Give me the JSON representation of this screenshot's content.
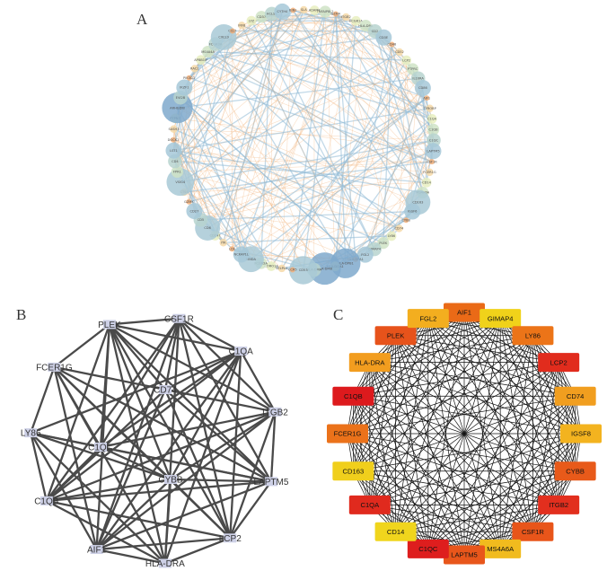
{
  "panels": {
    "a": {
      "letter": "A",
      "labels": [
        "GZMA",
        "ITGB2",
        "FCGR1A",
        "HLA-DRA",
        "CD2",
        "CD3E",
        "CD48",
        "CD52",
        "LCP2",
        "PTPRC",
        "IL10RA",
        "CD86",
        "AIF1",
        "TYROBP",
        "C1QA",
        "C1QB",
        "C1QC",
        "LAPTM5",
        "CSF1R",
        "FCER1G",
        "CD14",
        "MS4A6A",
        "CD163",
        "IGSF6",
        "CYBB",
        "CD74",
        "LY86",
        "PLEK",
        "GIMAP4",
        "FGL2",
        "HLA-DPA1",
        "HLA-DPB1",
        "HLA-DQA1",
        "HLA-DMB",
        "HLA-DMA",
        "CD53",
        "CCR5",
        "SELPLG",
        "CORO1A",
        "FCGR2A",
        "MNDA",
        "NCKAP1L",
        "LCK",
        "ITK",
        "CD247",
        "CD6",
        "CD5",
        "CD27",
        "GZMK",
        "CTSS",
        "VSIG4",
        "FPR1",
        "CD4",
        "LST1",
        "DOCK2",
        "SASH3",
        "PTPN7",
        "ARHGDIB",
        "EVI2B",
        "IKZF1",
        "PIK3CD",
        "RAC2",
        "APBB1IP",
        "MS4A4A",
        "FCGR3A",
        "CXCL9",
        "CCL5",
        "IRF8",
        "LYZ",
        "CD37",
        "HCLS1",
        "CYTH4",
        "BIN2",
        "SLA",
        "ADAM8",
        "TNFAIP8L2"
      ],
      "big_nodes": [
        {
          "index": 33,
          "size": 1.0
        },
        {
          "index": 31,
          "size": 0.85
        },
        {
          "index": 35,
          "size": 0.75
        },
        {
          "index": 57,
          "size": 0.9
        },
        {
          "index": 50,
          "size": 0.7
        },
        {
          "index": 40,
          "size": 0.6
        },
        {
          "index": 65,
          "size": 0.6
        },
        {
          "index": 22,
          "size": 0.55
        },
        {
          "index": 45,
          "size": 0.55
        }
      ]
    },
    "b": {
      "letter": "B",
      "nodes": [
        "CSF1R",
        "C1QA",
        "ITGB2",
        "LAPTM5",
        "LCP2",
        "HLA-DRA",
        "AIF1",
        "C1QB",
        "LY86",
        "FCER1G",
        "PLEK",
        "CD74",
        "C1QC",
        "CYBB"
      ]
    },
    "c": {
      "letter": "C",
      "nodes": [
        {
          "label": "AIF1",
          "color": "#ea6a17"
        },
        {
          "label": "GIMAP4",
          "color": "#f0d21a"
        },
        {
          "label": "LY86",
          "color": "#ec7418"
        },
        {
          "label": "LCP2",
          "color": "#e12c1d"
        },
        {
          "label": "CD74",
          "color": "#f19e1f"
        },
        {
          "label": "IGSF8",
          "color": "#f3b31f"
        },
        {
          "label": "CYBB",
          "color": "#e85a1a"
        },
        {
          "label": "ITGB2",
          "color": "#e22f1e"
        },
        {
          "label": "CSF1R",
          "color": "#e8551a"
        },
        {
          "label": "MS4A6A",
          "color": "#f1bb1e"
        },
        {
          "label": "LAPTM5",
          "color": "#e8561b"
        },
        {
          "label": "C1QC",
          "color": "#de1e1e"
        },
        {
          "label": "CD14",
          "color": "#f0d51d"
        },
        {
          "label": "C1QA",
          "color": "#e02a1e"
        },
        {
          "label": "CD163",
          "color": "#f0cf1c"
        },
        {
          "label": "FCER1G",
          "color": "#eb721a"
        },
        {
          "label": "C1QB",
          "color": "#dd1a1d"
        },
        {
          "label": "HLA-DRA",
          "color": "#f29d1f"
        },
        {
          "label": "PLEK",
          "color": "#e7531b"
        },
        {
          "label": "FGL2",
          "color": "#f3ae1f"
        }
      ]
    }
  },
  "colors": {
    "edge_a_blue": "#8fb9d6",
    "edge_a_orange": "#f2b47c",
    "edge_b": "#4a4a4a",
    "node_b": "#cdd0e6",
    "edge_c": "#111111"
  }
}
